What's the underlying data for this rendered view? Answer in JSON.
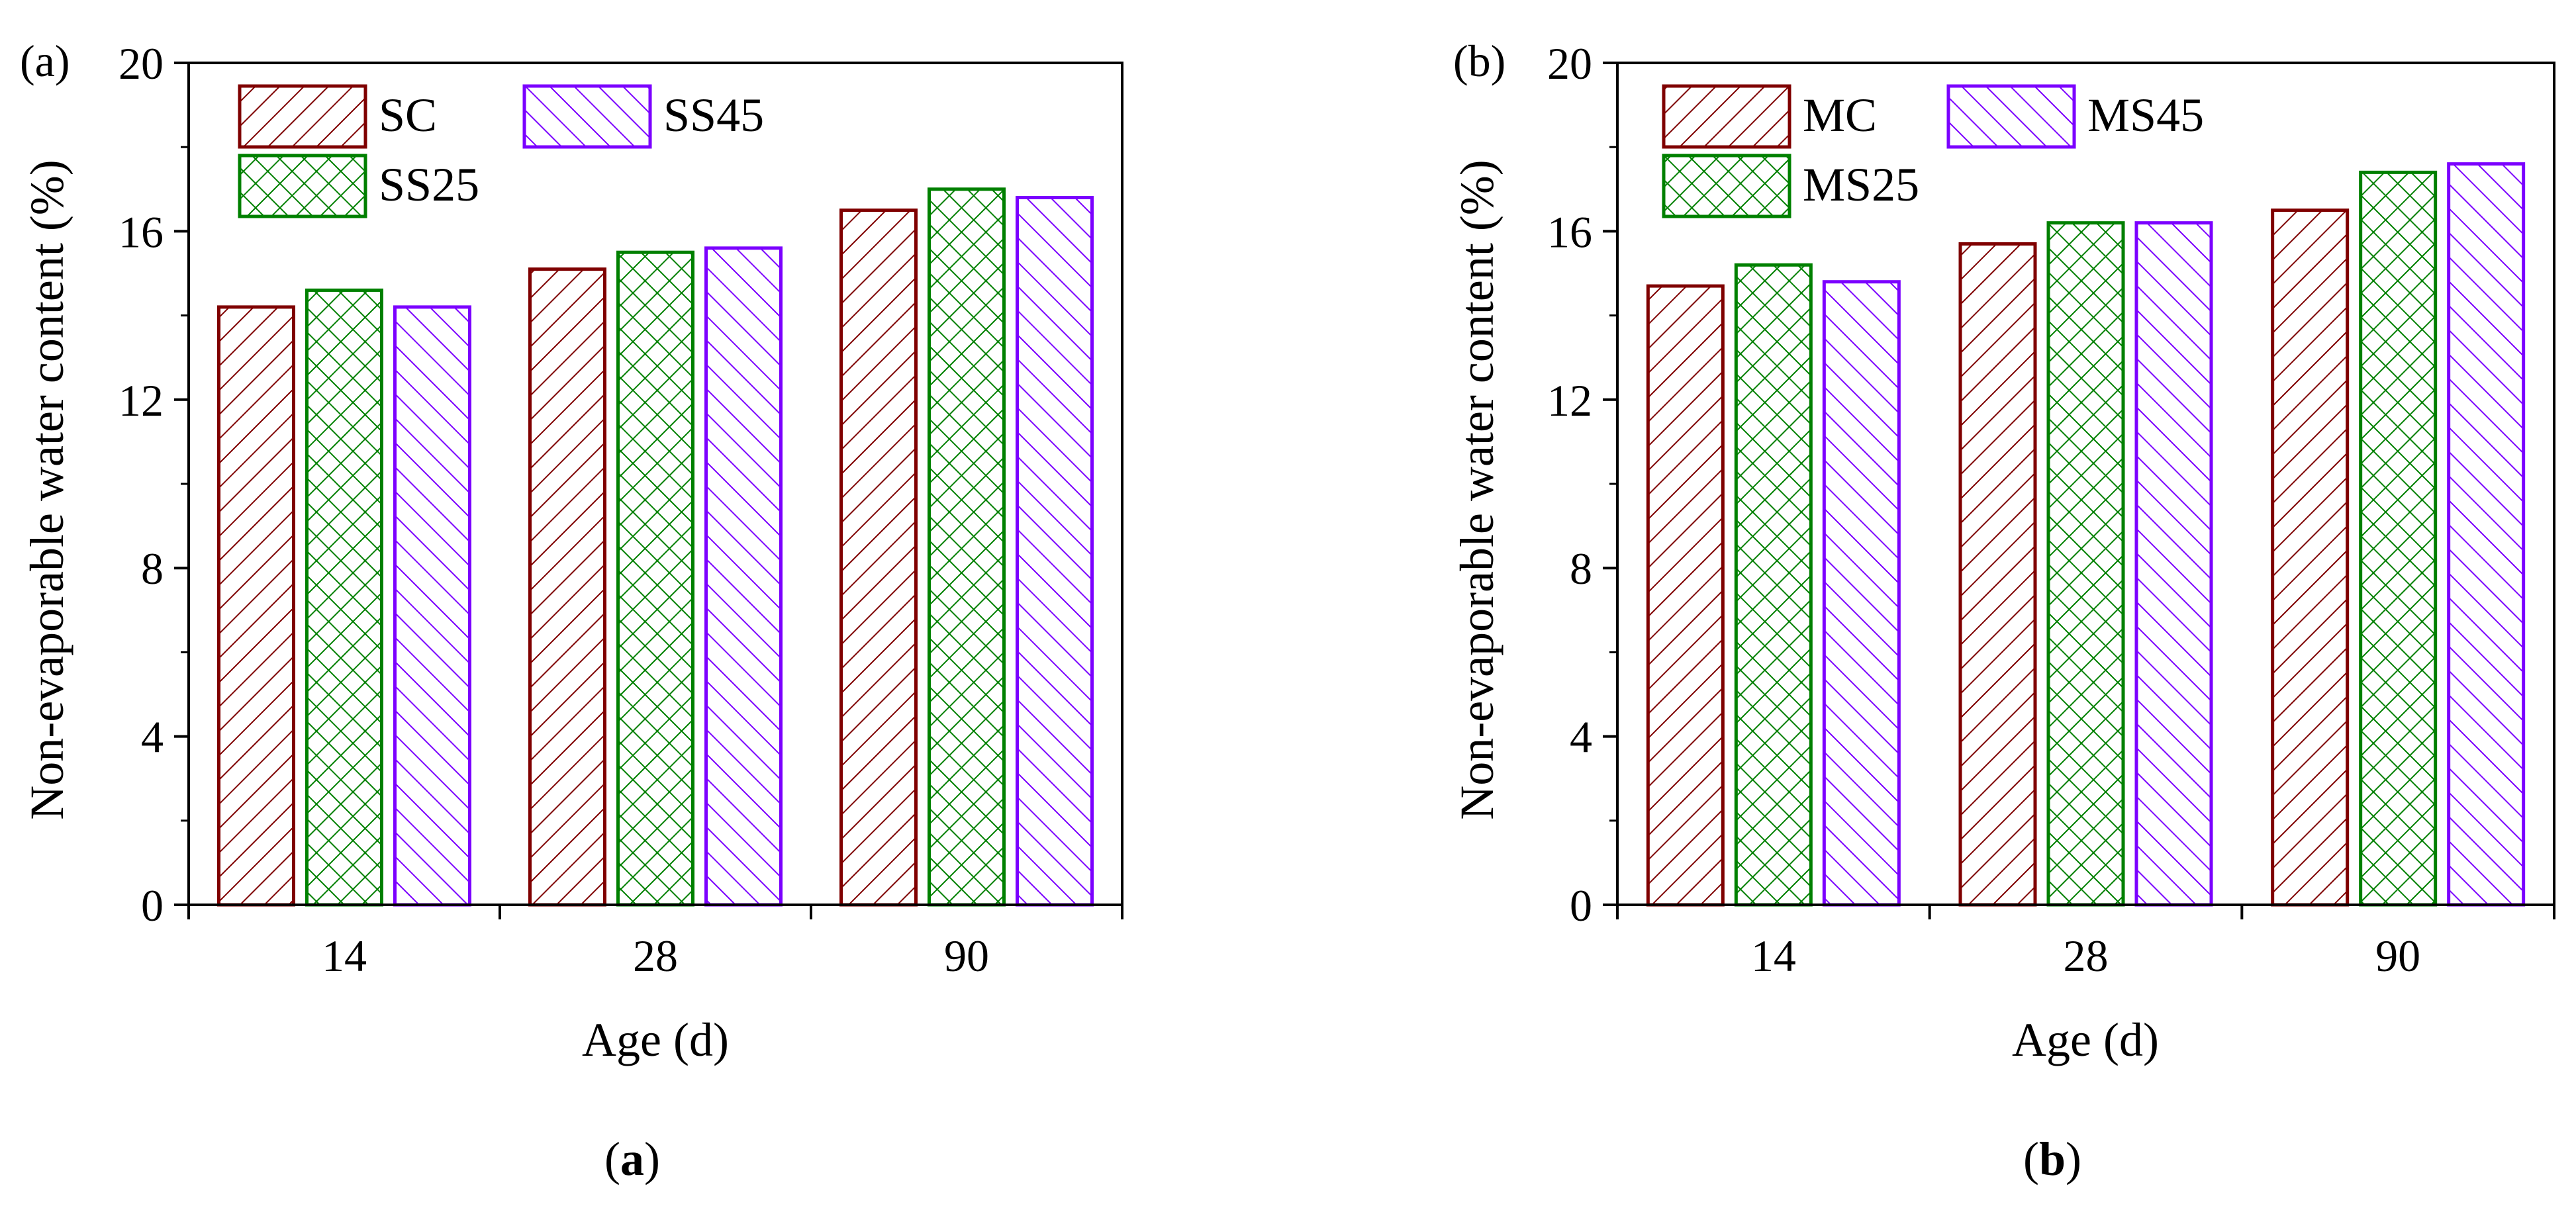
{
  "figure": {
    "caption_a_label": "a",
    "caption_b_label": "b"
  },
  "colors": {
    "control": "#7f0000",
    "s25": "#008000",
    "s45": "#7b00ff",
    "axis": "#000000"
  },
  "chart_data": [
    {
      "type": "bar",
      "panel_label": "(a)",
      "caption": "(a)",
      "title": "",
      "xlabel": "Age (d)",
      "ylabel": "Non-evaporable water content  (%)",
      "categories": [
        "14",
        "28",
        "90"
      ],
      "ylim": [
        0,
        20
      ],
      "yticks": [
        "0",
        "4",
        "8",
        "12",
        "16",
        "20"
      ],
      "legend_position": "top-left",
      "series": [
        {
          "name": "SC",
          "pattern": "hatch-right",
          "color": "#7f0000",
          "values": [
            14.2,
            15.1,
            16.5
          ]
        },
        {
          "name": "SS25",
          "pattern": "cross",
          "color": "#008000",
          "values": [
            14.6,
            15.5,
            17.0
          ]
        },
        {
          "name": "SS45",
          "pattern": "hatch-left",
          "color": "#7b00ff",
          "values": [
            14.2,
            15.6,
            16.8
          ]
        }
      ]
    },
    {
      "type": "bar",
      "panel_label": "(b)",
      "caption": "(b)",
      "title": "",
      "xlabel": "Age (d)",
      "ylabel": "Non-evaporable water content  (%)",
      "categories": [
        "14",
        "28",
        "90"
      ],
      "ylim": [
        0,
        20
      ],
      "yticks": [
        "0",
        "4",
        "8",
        "12",
        "16",
        "20"
      ],
      "legend_position": "top-left",
      "series": [
        {
          "name": "MC",
          "pattern": "hatch-right",
          "color": "#7f0000",
          "values": [
            14.7,
            15.7,
            16.5
          ]
        },
        {
          "name": "MS25",
          "pattern": "cross",
          "color": "#008000",
          "values": [
            15.2,
            16.2,
            17.4
          ]
        },
        {
          "name": "MS45",
          "pattern": "hatch-left",
          "color": "#7b00ff",
          "values": [
            14.8,
            16.2,
            17.6
          ]
        }
      ]
    }
  ]
}
